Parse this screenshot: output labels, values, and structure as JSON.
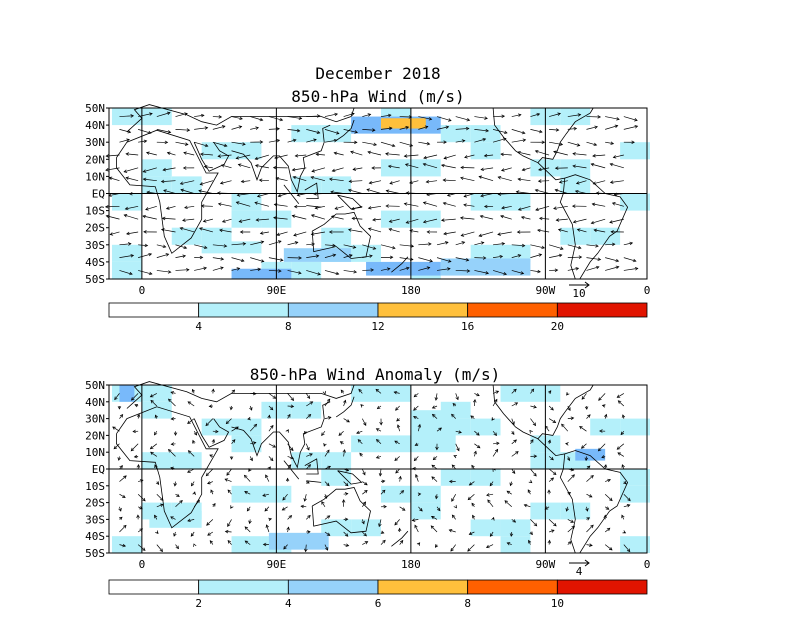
{
  "figure": {
    "title_line1": "December 2018",
    "panels": [
      {
        "id": "total",
        "title": "850-hPa Wind (m/s)",
        "ref_vector": "10",
        "colorbar": {
          "tick_labels": [
            "4",
            "8",
            "12",
            "16",
            "20"
          ],
          "colors": [
            "#ffffff",
            "#b4f0fa",
            "#96d2fa",
            "#78b9fa",
            "#ffc03c",
            "#ff6000",
            "#e11400"
          ]
        },
        "shaded_regions": [
          {
            "lon": [
              40,
              80
            ],
            "lat": [
              -35,
              -28
            ],
            "level": 1
          },
          {
            "lon": [
              95,
              140
            ],
            "lat": [
              -40,
              -32
            ],
            "level": 2
          },
          {
            "lon": [
              150,
              200
            ],
            "lat": [
              -48,
              -40
            ],
            "level": 3
          },
          {
            "lon": [
              200,
              260
            ],
            "lat": [
              -48,
              -38
            ],
            "level": 2
          },
          {
            "lon": [
              140,
              200
            ],
            "lat": [
              35,
              45
            ],
            "level": 3
          },
          {
            "lon": [
              160,
              190
            ],
            "lat": [
              38,
              44
            ],
            "level": 4
          },
          {
            "lon": [
              60,
              100
            ],
            "lat": [
              -50,
              -44
            ],
            "level": 3
          }
        ]
      },
      {
        "id": "anomaly",
        "title": "850-hPa Wind Anomaly (m/s)",
        "ref_vector": "4",
        "colorbar": {
          "tick_labels": [
            "2",
            "4",
            "6",
            "8",
            "10"
          ],
          "colors": [
            "#ffffff",
            "#b4f0fa",
            "#96d2fa",
            "#78b9fa",
            "#ffc03c",
            "#ff6000",
            "#e11400"
          ]
        },
        "shaded_regions": [
          {
            "lon": [
              180,
              210
            ],
            "lat": [
              10,
              35
            ],
            "level": 1
          },
          {
            "lon": [
              5,
              40
            ],
            "lat": [
              -35,
              -25
            ],
            "level": 1
          },
          {
            "lon": [
              85,
              125
            ],
            "lat": [
              -48,
              -38
            ],
            "level": 2
          },
          {
            "lon": [
              290,
              310
            ],
            "lat": [
              5,
              12
            ],
            "level": 3
          },
          {
            "lon": [
              -15,
              -5
            ],
            "lat": [
              40,
              50
            ],
            "level": 3
          }
        ]
      }
    ],
    "x_tick_labels": [
      "0",
      "90E",
      "180",
      "90W",
      "0"
    ],
    "y_tick_labels": [
      "50N",
      "40N",
      "30N",
      "20N",
      "10N",
      "EQ",
      "10S",
      "20S",
      "30S",
      "40S",
      "50S"
    ]
  }
}
